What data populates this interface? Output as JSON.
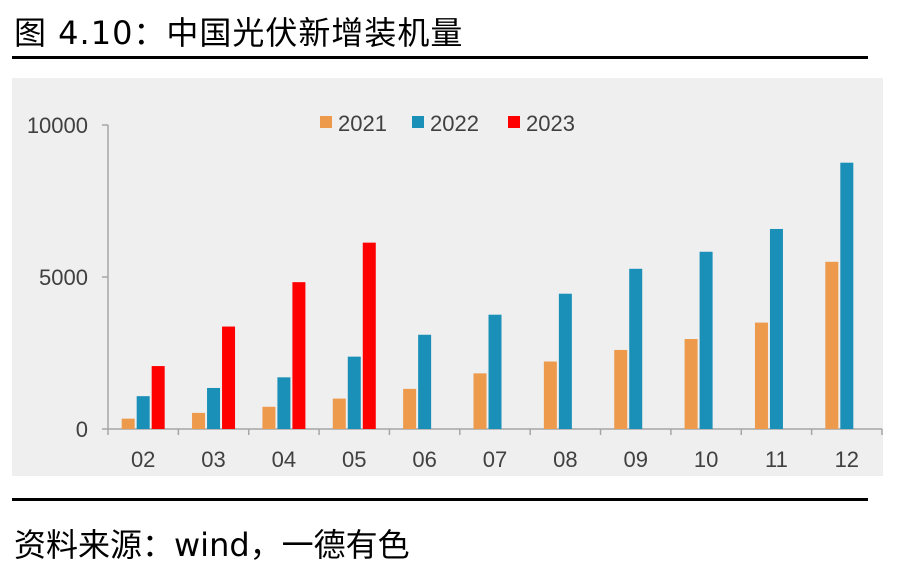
{
  "figure_title": "图 4.10：中国光伏新增装机量",
  "source": "资料来源：wind，一德有色",
  "colors": {
    "2021": "#ee9a4d",
    "2022": "#1a8fb8",
    "2023": "#ff0000",
    "axis": "#a6a6a6",
    "text": "#404040"
  },
  "chart_data": {
    "type": "bar",
    "title": "",
    "xlabel": "",
    "ylabel": "",
    "categories": [
      "02",
      "03",
      "04",
      "05",
      "06",
      "07",
      "08",
      "09",
      "10",
      "11",
      "12"
    ],
    "yticks": [
      0,
      5000,
      10000
    ],
    "ylim": [
      0,
      10000
    ],
    "legend_position": "top-center",
    "grid": false,
    "series": [
      {
        "name": "2021",
        "color": "#ee9a4d",
        "values": [
          340,
          530,
          730,
          1000,
          1320,
          1830,
          2220,
          2600,
          2960,
          3500,
          5500
        ]
      },
      {
        "name": "2022",
        "color": "#1a8fb8",
        "values": [
          1080,
          1350,
          1700,
          2380,
          3100,
          3760,
          4450,
          5270,
          5830,
          6580,
          8760
        ]
      },
      {
        "name": "2023",
        "color": "#ff0000",
        "values": [
          2070,
          3370,
          4830,
          6130,
          null,
          null,
          null,
          null,
          null,
          null,
          null
        ]
      }
    ]
  }
}
